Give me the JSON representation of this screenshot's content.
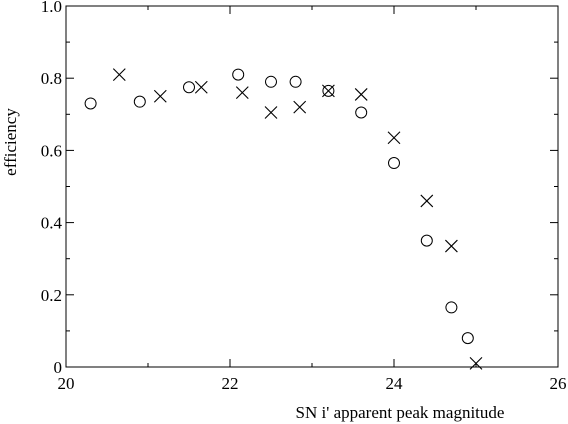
{
  "chart_data": {
    "type": "scatter",
    "title": "",
    "xlabel": "SN i' apparent peak magnitude",
    "ylabel": "efficiency",
    "xlim": [
      20,
      26
    ],
    "ylim": [
      0,
      1.0
    ],
    "x_ticks": [
      {
        "value": 20,
        "label": "20"
      },
      {
        "value": 22,
        "label": "22"
      },
      {
        "value": 24,
        "label": "24"
      },
      {
        "value": 26,
        "label": "26"
      }
    ],
    "y_ticks": [
      {
        "value": 0,
        "label": "0"
      },
      {
        "value": 0.2,
        "label": "0.2"
      },
      {
        "value": 0.4,
        "label": "0.4"
      },
      {
        "value": 0.6,
        "label": "0.6"
      },
      {
        "value": 0.8,
        "label": "0.8"
      },
      {
        "value": 1.0,
        "label": "1.0"
      }
    ],
    "grid": false,
    "legend": "none",
    "series": [
      {
        "marker": "circle",
        "x": [
          20.3,
          20.9,
          21.5,
          22.1,
          22.5,
          22.8,
          23.2,
          23.6,
          24.0,
          24.4,
          24.7,
          24.9
        ],
        "y": [
          0.73,
          0.735,
          0.775,
          0.81,
          0.79,
          0.79,
          0.765,
          0.705,
          0.565,
          0.35,
          0.165,
          0.08
        ]
      },
      {
        "marker": "cross",
        "x": [
          20.65,
          21.15,
          21.65,
          22.15,
          22.5,
          22.85,
          23.2,
          23.6,
          24.0,
          24.4,
          24.7,
          25.0
        ],
        "y": [
          0.81,
          0.75,
          0.775,
          0.76,
          0.705,
          0.72,
          0.765,
          0.755,
          0.635,
          0.46,
          0.335,
          0.01
        ]
      }
    ]
  }
}
